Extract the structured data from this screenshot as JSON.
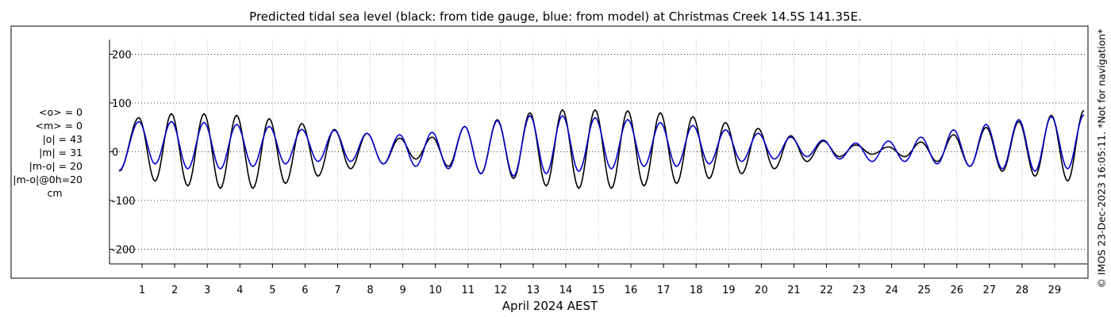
{
  "chart_data": {
    "type": "line",
    "title": "Predicted tidal sea level (black: from tide gauge, blue: from model) at Christmas Creek 14.5S 141.35E.",
    "xlabel": "April 2024 AEST",
    "ylabel": "",
    "xlim": [
      0,
      30
    ],
    "ylim": [
      -230,
      230
    ],
    "yticks": [
      -200,
      -100,
      0,
      100,
      200
    ],
    "xticks": [
      1,
      2,
      3,
      4,
      5,
      6,
      7,
      8,
      9,
      10,
      11,
      12,
      13,
      14,
      15,
      16,
      17,
      18,
      19,
      20,
      21,
      22,
      23,
      24,
      25,
      26,
      27,
      28,
      29
    ],
    "grid": true,
    "series": [
      {
        "color": "#000000",
        "x": [
          0.3,
          0.9,
          1.4,
          1.9,
          2.4,
          2.9,
          3.4,
          3.9,
          4.4,
          4.9,
          5.4,
          5.9,
          6.4,
          6.9,
          7.4,
          7.9,
          8.4,
          8.9,
          9.4,
          9.9,
          10.4,
          10.9,
          11.4,
          11.9,
          12.4,
          12.9,
          13.4,
          13.9,
          14.4,
          14.9,
          15.4,
          15.9,
          16.4,
          16.9,
          17.4,
          17.9,
          18.4,
          18.9,
          19.4,
          19.9,
          20.4,
          20.9,
          21.4,
          21.9,
          22.4,
          22.9,
          23.4,
          23.9,
          24.4,
          24.9,
          25.4,
          25.9,
          26.4,
          26.9,
          27.4,
          27.9,
          28.4,
          28.9,
          29.4,
          29.9
        ],
        "y": [
          -40,
          70,
          -60,
          78,
          -70,
          78,
          -75,
          75,
          -75,
          68,
          -65,
          58,
          -50,
          46,
          -35,
          38,
          -25,
          28,
          -15,
          30,
          -30,
          52,
          -45,
          66,
          -55,
          80,
          -70,
          86,
          -75,
          86,
          -75,
          84,
          -70,
          80,
          -65,
          72,
          -55,
          60,
          -45,
          48,
          -35,
          33,
          -20,
          22,
          -10,
          14,
          -5,
          10,
          -10,
          20,
          -20,
          35,
          -30,
          50,
          -40,
          62,
          -50,
          75,
          -60,
          85
        ]
      },
      {
        "color": "#0000cc",
        "x": [
          0.3,
          0.9,
          1.4,
          1.9,
          2.4,
          2.9,
          3.4,
          3.9,
          4.4,
          4.9,
          5.4,
          5.9,
          6.4,
          6.9,
          7.4,
          7.9,
          8.4,
          8.9,
          9.4,
          9.9,
          10.4,
          10.9,
          11.4,
          11.9,
          12.4,
          12.9,
          13.4,
          13.9,
          14.4,
          14.9,
          15.4,
          15.9,
          16.4,
          16.9,
          17.4,
          17.9,
          18.4,
          18.9,
          19.4,
          19.9,
          20.4,
          20.9,
          21.4,
          21.9,
          22.4,
          22.9,
          23.4,
          23.9,
          24.4,
          24.9,
          25.4,
          25.9,
          26.4,
          26.9,
          27.4,
          27.9,
          28.4,
          28.9,
          29.4,
          29.9
        ],
        "y": [
          -38,
          62,
          -25,
          62,
          -35,
          60,
          -35,
          56,
          -30,
          52,
          -25,
          46,
          -20,
          44,
          -20,
          38,
          -25,
          35,
          -30,
          40,
          -35,
          52,
          -45,
          64,
          -50,
          74,
          -45,
          74,
          -40,
          70,
          -35,
          66,
          -30,
          60,
          -30,
          54,
          -25,
          45,
          -20,
          38,
          -15,
          30,
          -10,
          24,
          -15,
          18,
          -20,
          22,
          -20,
          30,
          -25,
          45,
          -30,
          56,
          -35,
          66,
          -40,
          72,
          -35,
          76
        ]
      }
    ],
    "stats": {
      "o_mean": "<o> = 0",
      "m_mean": "<m> = 0",
      "o_abs": "|o| = 43",
      "m_abs": "|m| = 31",
      "mo_abs": "|m-o| = 20",
      "mo_0h": "|m-o|@0h=20",
      "unit": "cm"
    },
    "credit": "© IMOS 23-Dec-2023 16:05:11. *Not for navigation*"
  }
}
